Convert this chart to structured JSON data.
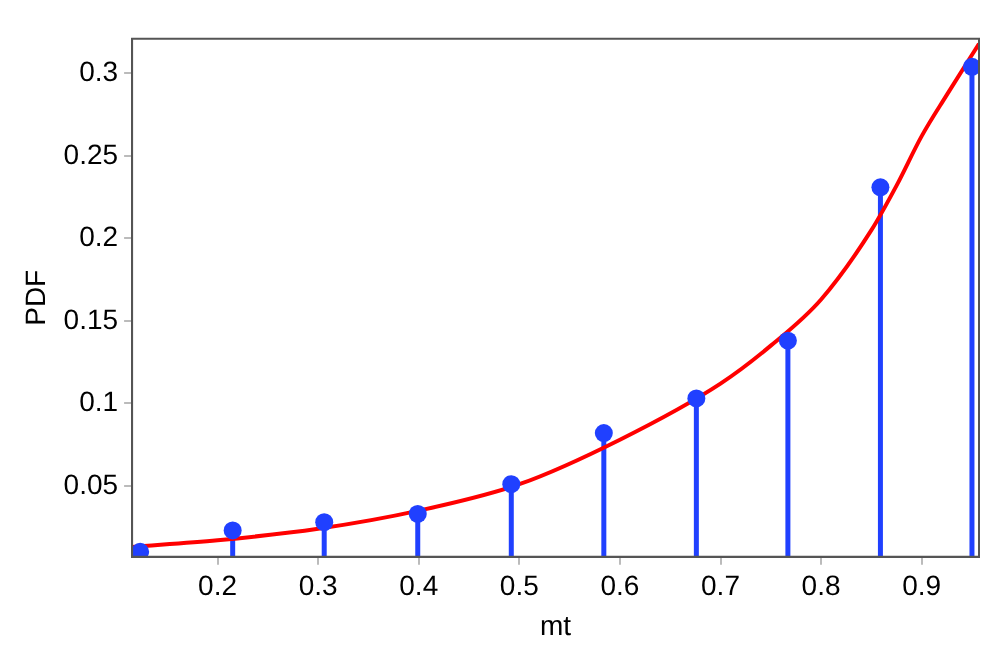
{
  "chart_data": {
    "type": "lollipop",
    "xlabel": "mt",
    "ylabel": "PDF",
    "xlim": [
      0.115,
      0.957
    ],
    "ylim": [
      0.007,
      0.321
    ],
    "xticks": [
      0.2,
      0.3,
      0.4,
      0.5,
      0.6,
      0.7,
      0.8,
      0.9
    ],
    "yticks": [
      0.05,
      0.1,
      0.15,
      0.2,
      0.25,
      0.3
    ],
    "grid": false,
    "legend": false,
    "marker": "circle",
    "series": [
      {
        "color": "#2040ff",
        "x": [
          0.123,
          0.215,
          0.306,
          0.399,
          0.492,
          0.584,
          0.676,
          0.767,
          0.859,
          0.95
        ],
        "values": [
          0.01,
          0.023,
          0.028,
          0.033,
          0.051,
          0.082,
          0.103,
          0.138,
          0.231,
          0.304
        ]
      },
      {
        "type": "line",
        "color": "#ff0000",
        "line_style": "solid",
        "marker": "none",
        "x": [
          0.115,
          0.2,
          0.3,
          0.4,
          0.5,
          0.6,
          0.7,
          0.75,
          0.8,
          0.85,
          0.875,
          0.9,
          0.925,
          0.957
        ],
        "values": [
          0.013,
          0.017,
          0.024,
          0.035,
          0.051,
          0.078,
          0.112,
          0.135,
          0.163,
          0.205,
          0.232,
          0.262,
          0.287,
          0.318
        ]
      }
    ]
  }
}
